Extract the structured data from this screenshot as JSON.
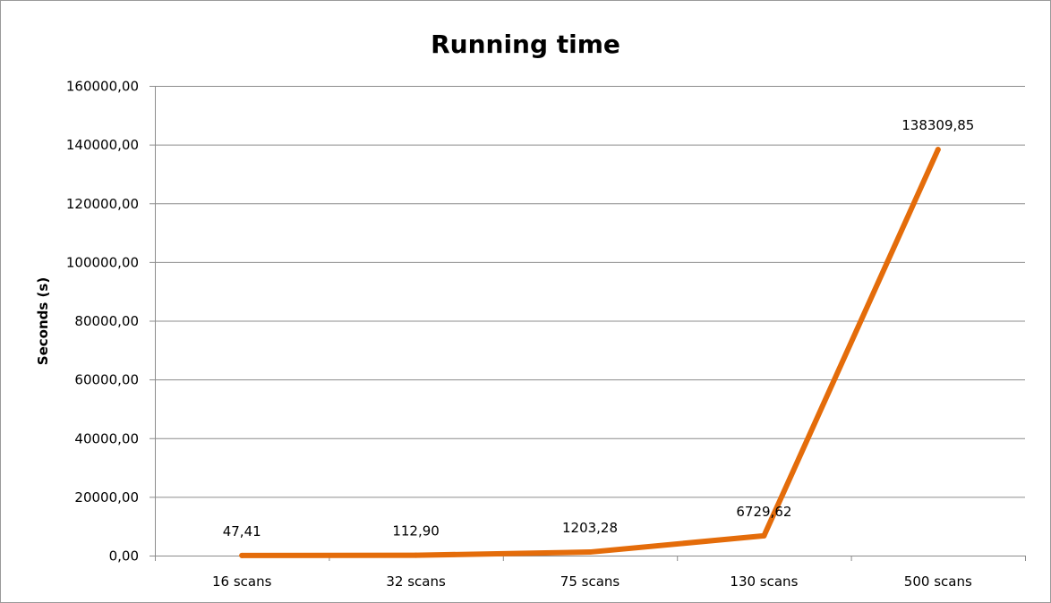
{
  "chart_data": {
    "type": "line",
    "title": "Running time",
    "xlabel": "",
    "ylabel": "Seconds (s)",
    "categories": [
      "16 scans",
      "32 scans",
      "75 scans",
      "130 scans",
      "500 scans"
    ],
    "series": [
      {
        "values": [
          47.41,
          112.9,
          1203.28,
          6729.62,
          138309.85
        ],
        "data_labels": [
          "47,41",
          "112,90",
          "1203,28",
          "6729,62",
          "138309,85"
        ],
        "color": "#e46c0a"
      }
    ],
    "ylim": [
      0,
      160000
    ],
    "yticks": [
      0,
      20000,
      40000,
      60000,
      80000,
      100000,
      120000,
      140000,
      160000
    ],
    "ytick_labels": [
      "0,00",
      "20000,00",
      "40000,00",
      "60000,00",
      "80000,00",
      "100000,00",
      "120000,00",
      "140000,00",
      "160000,00"
    ],
    "grid": true,
    "legend": "none"
  }
}
